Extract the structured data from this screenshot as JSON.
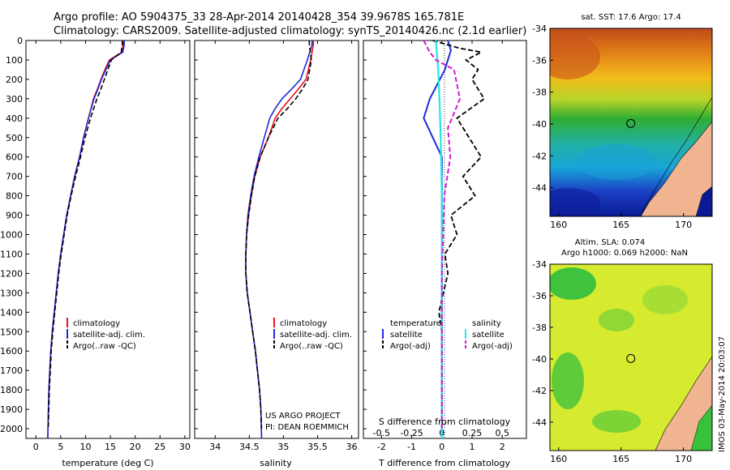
{
  "header": {
    "line1": "Argo profile: AO 5904375_33 28-Apr-2014 20140428_354 39.9678S 165.781E",
    "line2": "Climatology: CARS2009. Satellite-adjusted climatology: synTS_20140426.nc (2.1d earlier)"
  },
  "footer": {
    "project": "US ARGO PROJECT",
    "pi": "PI: DEAN ROEMMICH",
    "stamp": "IMOS 03-May-2014 20:03:07"
  },
  "colors": {
    "climatology": "#e8121a",
    "satellite": "#1d2bd8",
    "argo": "#000000",
    "salinity_satellite": "#22e6e6",
    "salinity_argo": "#d31ad3",
    "land": "#f0b590"
  },
  "chart_data": [
    {
      "type": "line",
      "id": "temperature",
      "xlabel": "temperature (deg C)",
      "xlim": [
        -2,
        31
      ],
      "xticks": [
        0,
        5,
        10,
        15,
        20,
        25,
        30
      ],
      "ylim": [
        0,
        2050
      ],
      "yticks": [
        0,
        100,
        200,
        300,
        400,
        500,
        600,
        700,
        800,
        900,
        1000,
        1100,
        1200,
        1300,
        1400,
        1500,
        1600,
        1700,
        1800,
        1900,
        2000
      ],
      "legend": [
        "climatology",
        "satellite-adj. clim.",
        "Argo(..raw -QC)"
      ],
      "series": [
        {
          "name": "climatology",
          "x": [
            17.6,
            17.6,
            17.3,
            14.8,
            13.9,
            13.1,
            12.4,
            11.6,
            10.6,
            9.6,
            8.8,
            7.8,
            7.0,
            6.2,
            5.6,
            5.0,
            4.5,
            4.1,
            3.7,
            3.3,
            3.0,
            2.8,
            2.6,
            2.4
          ],
          "y": [
            0,
            20,
            60,
            100,
            150,
            200,
            250,
            300,
            400,
            500,
            600,
            700,
            800,
            900,
            1000,
            1100,
            1200,
            1300,
            1400,
            1500,
            1600,
            1700,
            1800,
            2050
          ]
        },
        {
          "name": "satellite-adj. clim.",
          "x": [
            17.8,
            17.8,
            17.5,
            15.0,
            14.1,
            13.2,
            12.5,
            11.7,
            10.6,
            9.6,
            8.8,
            7.8,
            7.0,
            6.2,
            5.6,
            5.0,
            4.5,
            4.1,
            3.7,
            3.3,
            3.0,
            2.8,
            2.6,
            2.4
          ],
          "y": [
            0,
            20,
            60,
            100,
            150,
            200,
            250,
            300,
            400,
            500,
            600,
            700,
            800,
            900,
            1000,
            1100,
            1200,
            1300,
            1400,
            1500,
            1600,
            1700,
            1800,
            2050
          ]
        },
        {
          "name": "Argo(..raw -QC)",
          "x": [
            17.4,
            17.4,
            17.2,
            15.2,
            14.5,
            13.8,
            13.1,
            12.3,
            11.0,
            9.9,
            9.0,
            8.0,
            7.1,
            6.3,
            5.7,
            5.1,
            4.6,
            4.2,
            3.8,
            3.4,
            3.1,
            2.9,
            2.7,
            2.5
          ],
          "y": [
            0,
            20,
            60,
            100,
            150,
            200,
            250,
            300,
            400,
            500,
            600,
            700,
            800,
            900,
            1000,
            1100,
            1200,
            1300,
            1400,
            1500,
            1600,
            1700,
            1800,
            2000
          ]
        }
      ]
    },
    {
      "type": "line",
      "id": "salinity",
      "xlabel": "salinity",
      "xlim": [
        33.7,
        36.1
      ],
      "xticks": [
        34,
        34.5,
        35,
        35.5,
        36
      ],
      "xticklabels": [
        "34",
        "34.5",
        "35",
        "35.5",
        "36"
      ],
      "ylim": [
        0,
        2050
      ],
      "legend": [
        "climatology",
        "satellite-adj. clim.",
        "Argo(..raw -QC)"
      ],
      "series": [
        {
          "name": "climatology",
          "x": [
            35.44,
            35.44,
            35.4,
            35.33,
            35.22,
            35.1,
            34.98,
            34.88,
            34.78,
            34.66,
            34.58,
            34.53,
            34.49,
            34.46,
            34.45,
            34.45,
            34.47,
            34.51,
            34.55,
            34.59,
            34.62,
            34.65,
            34.67,
            34.68
          ],
          "y": [
            0,
            20,
            100,
            200,
            250,
            300,
            350,
            400,
            500,
            600,
            700,
            800,
            900,
            1000,
            1100,
            1200,
            1300,
            1400,
            1500,
            1600,
            1700,
            1800,
            1900,
            2050
          ]
        },
        {
          "name": "satellite-adj. clim.",
          "x": [
            35.42,
            35.42,
            35.35,
            35.25,
            35.12,
            34.98,
            34.88,
            34.8,
            34.72,
            34.64,
            34.57,
            34.52,
            34.48,
            34.46,
            34.45,
            34.45,
            34.47,
            34.51,
            34.55,
            34.59,
            34.62,
            34.65,
            34.67,
            34.68
          ],
          "y": [
            0,
            20,
            100,
            200,
            250,
            300,
            350,
            400,
            500,
            600,
            700,
            800,
            900,
            1000,
            1100,
            1200,
            1300,
            1400,
            1500,
            1600,
            1700,
            1800,
            1900,
            2050
          ]
        },
        {
          "name": "Argo(..raw -QC)",
          "x": [
            35.38,
            35.38,
            35.41,
            35.36,
            35.28,
            35.18,
            35.06,
            34.92,
            34.78,
            34.66,
            34.58,
            34.53,
            34.49,
            34.46,
            34.45,
            34.45,
            34.47,
            34.51,
            34.55,
            34.59,
            34.62,
            34.65,
            34.67,
            34.68
          ],
          "y": [
            0,
            20,
            100,
            200,
            250,
            300,
            350,
            400,
            500,
            600,
            700,
            800,
            900,
            1000,
            1100,
            1200,
            1300,
            1400,
            1500,
            1600,
            1700,
            1800,
            1900,
            2000
          ]
        }
      ]
    },
    {
      "type": "line",
      "id": "difference",
      "xlabel": "T difference from climatology",
      "xlabel_top": "S difference from climatology",
      "xlim": [
        -2.6,
        2.8
      ],
      "xticks": [
        -2,
        -1,
        0,
        1,
        2
      ],
      "top_xticks": [
        -0.5,
        -0.25,
        0,
        0.25,
        0.5
      ],
      "top_xticklabels": [
        "-0.5",
        "-0.25",
        "0",
        "0.25",
        "0.5"
      ],
      "ylim": [
        0,
        2050
      ],
      "legend_temperature": {
        "title": "temperature",
        "items": [
          "satellite",
          "Argo(-adj)"
        ]
      },
      "legend_salinity": {
        "title": "salinity",
        "items": [
          "satellite",
          "Argo(-adj)"
        ]
      },
      "series": [
        {
          "name": "temperature satellite",
          "x": [
            0.2,
            0.3,
            0.1,
            -0.4,
            -0.6,
            -0.3,
            0.0,
            0.0,
            0.0,
            0.0,
            0.0,
            0.0
          ],
          "y": [
            0,
            50,
            150,
            300,
            400,
            500,
            600,
            800,
            1000,
            1300,
            1600,
            2050
          ]
        },
        {
          "name": "temperature Argo(-adj)",
          "x": [
            -0.3,
            0.6,
            1.3,
            0.8,
            1.2,
            1.0,
            1.4,
            0.5,
            0.9,
            1.3,
            0.7,
            1.1,
            0.3,
            0.5,
            0.1,
            0.2,
            -0.1,
            0.0,
            0.0,
            0.0
          ],
          "y": [
            0,
            40,
            60,
            100,
            150,
            200,
            300,
            400,
            500,
            600,
            700,
            800,
            900,
            1000,
            1100,
            1200,
            1400,
            1500,
            1700,
            2000
          ]
        },
        {
          "name": "salinity satellite",
          "x": [
            -0.05,
            -0.03,
            -0.02,
            -0.01,
            0.0,
            0.0,
            0.0
          ],
          "y": [
            0,
            150,
            300,
            500,
            800,
            1200,
            2050
          ]
        },
        {
          "name": "salinity Argo(-adj)",
          "x": [
            -0.15,
            -0.1,
            -0.05,
            0.1,
            0.15,
            0.05,
            0.07,
            0.02,
            0.0,
            0.0
          ],
          "y": [
            0,
            60,
            100,
            150,
            300,
            450,
            600,
            800,
            1200,
            2000
          ]
        }
      ]
    },
    {
      "type": "heatmap",
      "id": "sst-map",
      "title": "sat. SST: 17.6 Argo: 17.4",
      "xlim": [
        159.3,
        172.3
      ],
      "ylim": [
        -45.8,
        -34
      ],
      "xticks": [
        160,
        165,
        170
      ],
      "yticks": [
        -34,
        -36,
        -38,
        -40,
        -42,
        -44
      ],
      "marker": {
        "lon": 165.78,
        "lat": -39.97
      },
      "gradient": [
        "#f0f0a0",
        "#c8461e",
        "#e08a14",
        "#f0c21c",
        "#2bb02f",
        "#17b6d4",
        "#1a43c8",
        "#0b1fa0"
      ]
    },
    {
      "type": "heatmap",
      "id": "sla-map",
      "title_line1": "Altim. SLA: 0.074",
      "title_line2": "Argo h1000: 0.069 h2000: NaN",
      "xlim": [
        159.3,
        172.3
      ],
      "ylim": [
        -45.8,
        -34
      ],
      "xticks": [
        160,
        165,
        170
      ],
      "yticks": [
        -34,
        -36,
        -38,
        -40,
        -42,
        -44
      ],
      "marker": {
        "lon": 165.78,
        "lat": -39.97
      },
      "gradient": [
        "#e9ef2d",
        "#9ddc34",
        "#36c23a"
      ]
    }
  ]
}
